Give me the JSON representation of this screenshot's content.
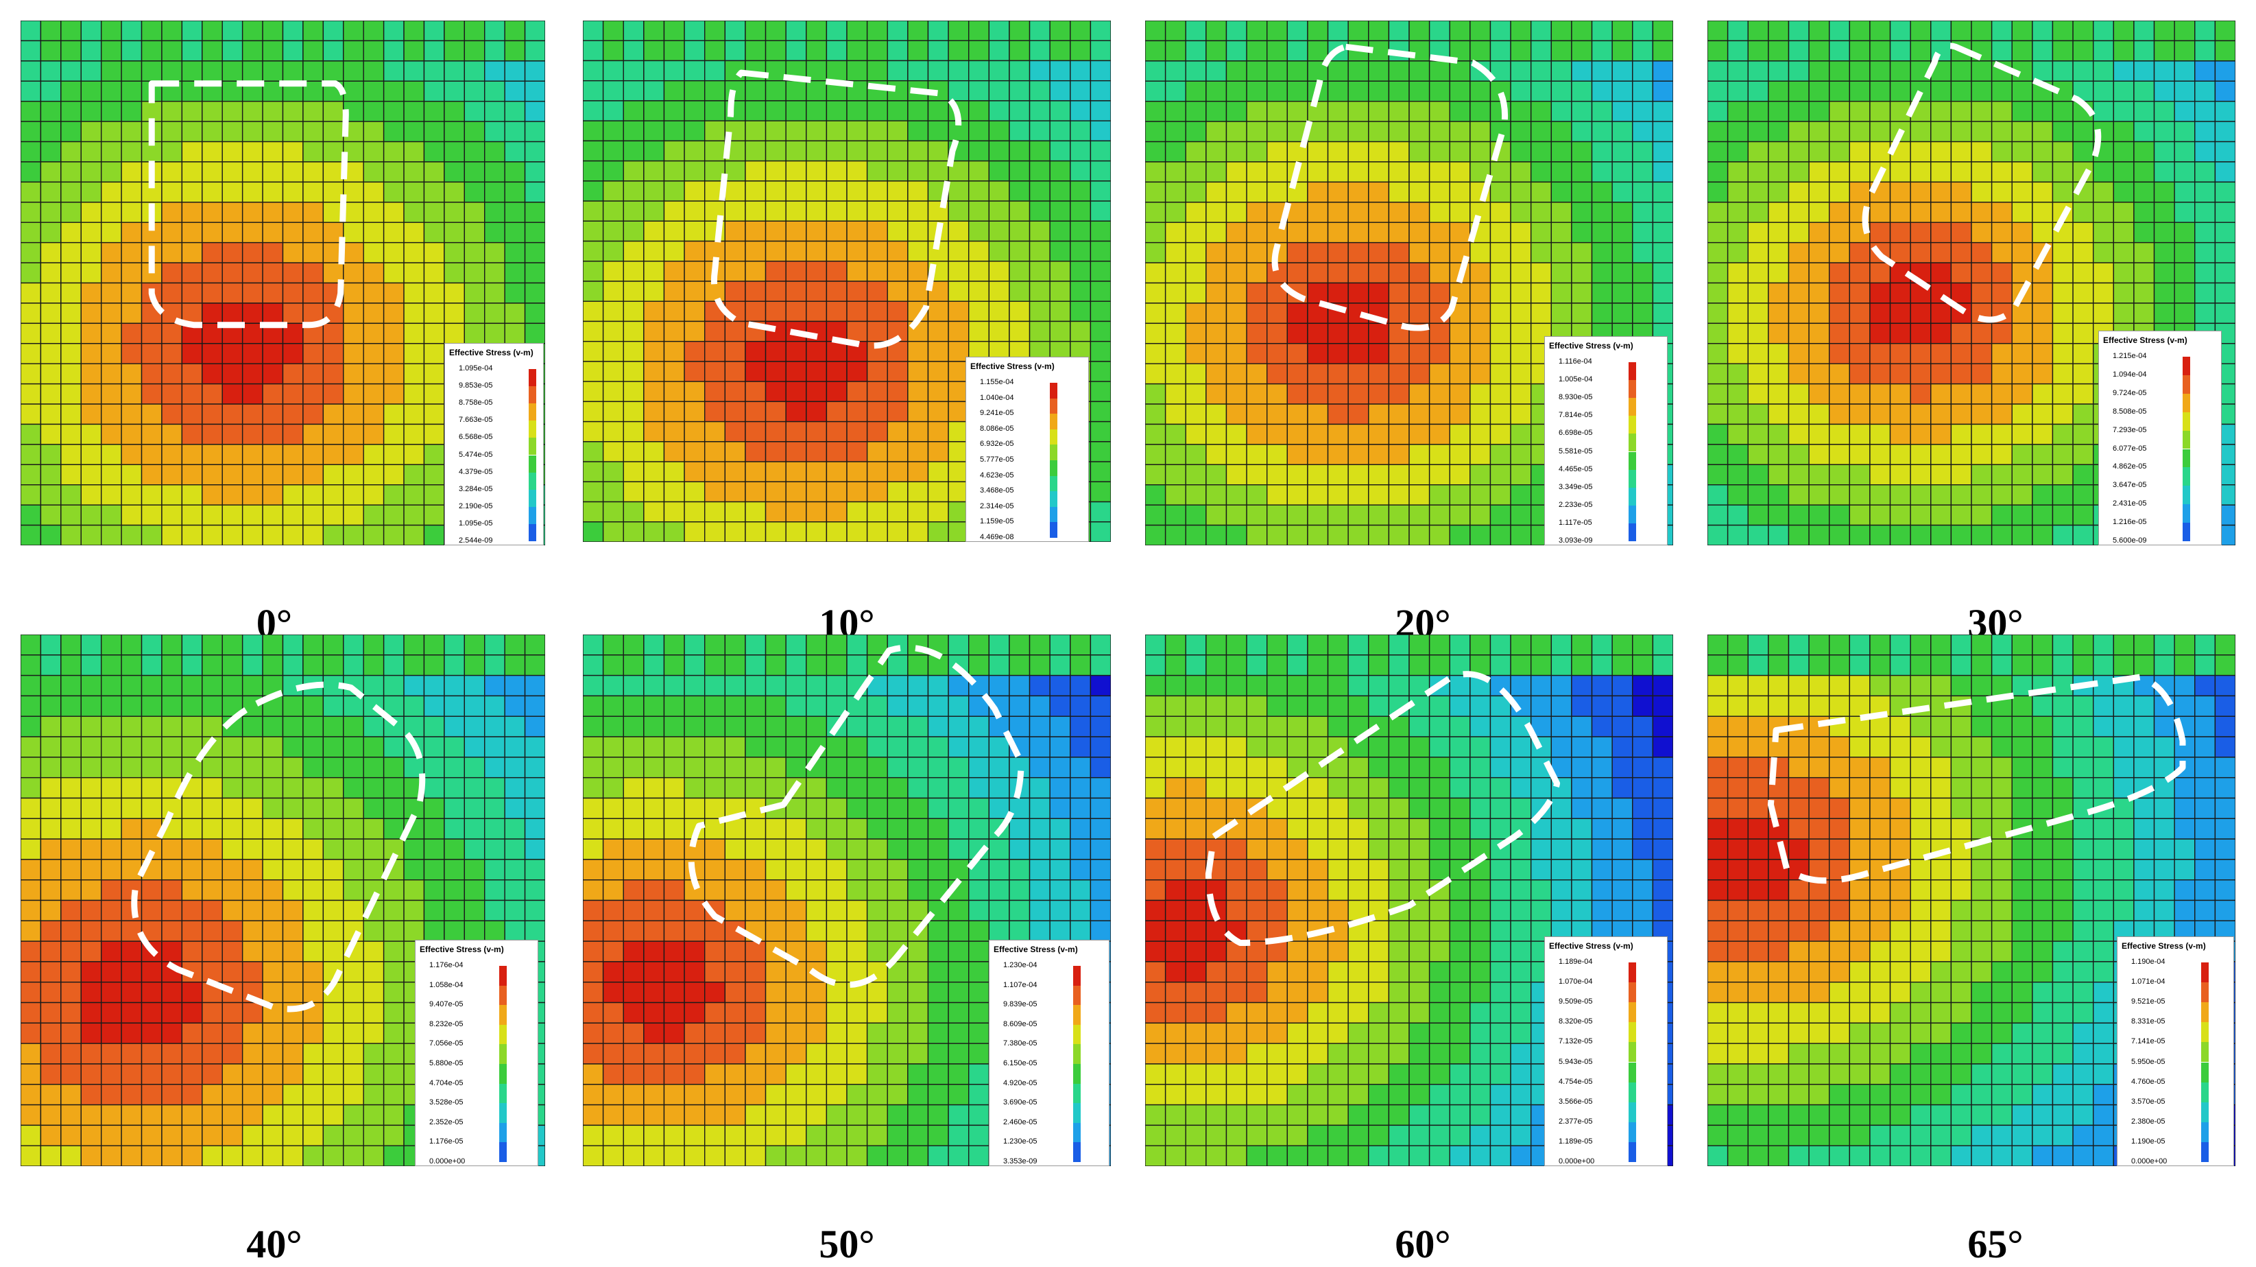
{
  "legend_title": "Effective Stress (v-m)",
  "colors": {
    "scale": [
      "#1010d0",
      "#1a5ee6",
      "#1ea0e8",
      "#22c8c8",
      "#2ad68a",
      "#3ccc3c",
      "#8cd828",
      "#d8e018",
      "#f0a818",
      "#e86020",
      "#d82010"
    ],
    "mesh_line": "#1a1a1a",
    "outline": "#ffffff"
  },
  "panels": [
    {
      "caption": "0°",
      "legend": [
        "1.095e-04",
        "9.853e-05",
        "8.758e-05",
        "7.663e-05",
        "6.568e-05",
        "5.474e-05",
        "4.379e-05",
        "3.284e-05",
        "2.190e-05",
        "1.095e-05",
        "2.544e-09"
      ]
    },
    {
      "caption": "10°",
      "legend": [
        "1.155e-04",
        "1.040e-04",
        "9.241e-05",
        "8.086e-05",
        "6.932e-05",
        "5.777e-05",
        "4.623e-05",
        "3.468e-05",
        "2.314e-05",
        "1.159e-05",
        "4.469e-08"
      ]
    },
    {
      "caption": "20°",
      "legend": [
        "1.116e-04",
        "1.005e-04",
        "8.930e-05",
        "7.814e-05",
        "6.698e-05",
        "5.581e-05",
        "4.465e-05",
        "3.349e-05",
        "2.233e-05",
        "1.117e-05",
        "3.093e-09"
      ]
    },
    {
      "caption": "30°",
      "legend": [
        "1.215e-04",
        "1.094e-04",
        "9.724e-05",
        "8.508e-05",
        "7.293e-05",
        "6.077e-05",
        "4.862e-05",
        "3.647e-05",
        "2.431e-05",
        "1.216e-05",
        "5.600e-09"
      ]
    },
    {
      "caption": "40°",
      "legend": [
        "1.176e-04",
        "1.058e-04",
        "9.407e-05",
        "8.232e-05",
        "7.056e-05",
        "5.880e-05",
        "4.704e-05",
        "3.528e-05",
        "2.352e-05",
        "1.176e-05",
        "0.000e+00"
      ]
    },
    {
      "caption": "50°",
      "legend": [
        "1.230e-04",
        "1.107e-04",
        "9.839e-05",
        "8.609e-05",
        "7.380e-05",
        "6.150e-05",
        "4.920e-05",
        "3.690e-05",
        "2.460e-05",
        "1.230e-05",
        "3.353e-09"
      ]
    },
    {
      "caption": "60°",
      "legend": [
        "1.189e-04",
        "1.070e-04",
        "9.509e-05",
        "8.320e-05",
        "7.132e-05",
        "5.943e-05",
        "4.754e-05",
        "3.566e-05",
        "2.377e-05",
        "1.189e-05",
        "0.000e+00"
      ]
    },
    {
      "caption": "65°",
      "legend": [
        "1.190e-04",
        "1.071e-04",
        "9.521e-05",
        "8.331e-05",
        "7.141e-05",
        "5.950e-05",
        "4.760e-05",
        "3.570e-05",
        "2.380e-05",
        "1.190e-05",
        "0.000e+00"
      ]
    }
  ]
}
